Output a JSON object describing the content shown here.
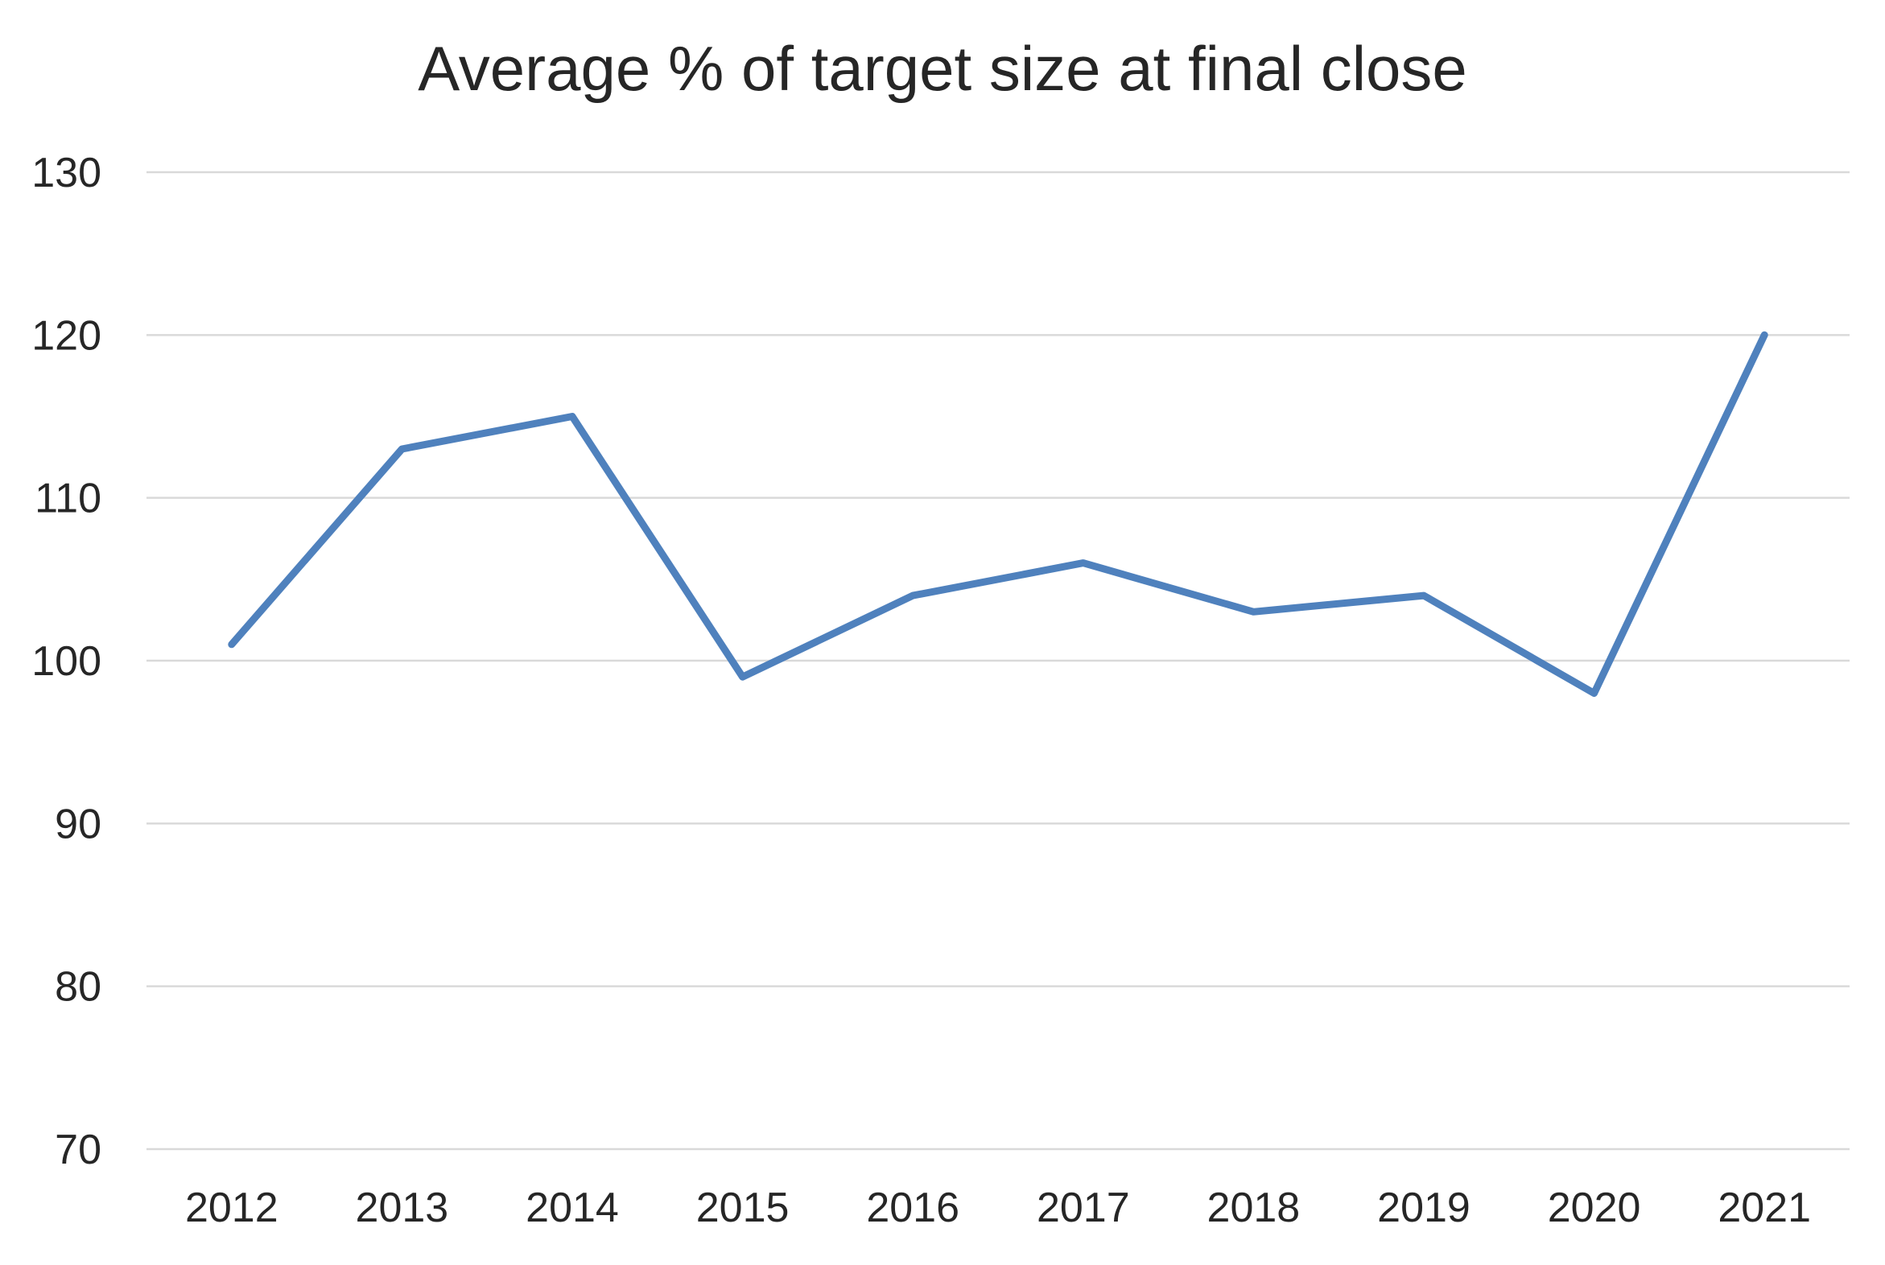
{
  "chart_data": {
    "type": "line",
    "title": "Average % of target size at final close",
    "xlabel": "",
    "ylabel": "",
    "categories": [
      "2012",
      "2013",
      "2014",
      "2015",
      "2016",
      "2017",
      "2018",
      "2019",
      "2020",
      "2021"
    ],
    "series": [
      {
        "values": [
          101,
          113,
          115,
          99,
          104,
          106,
          103,
          104,
          98,
          120
        ],
        "color": "#4f81bd"
      }
    ],
    "ylim": [
      70,
      130
    ],
    "yticks": [
      70,
      80,
      90,
      100,
      110,
      120,
      130
    ],
    "grid": true,
    "legend": "none"
  }
}
